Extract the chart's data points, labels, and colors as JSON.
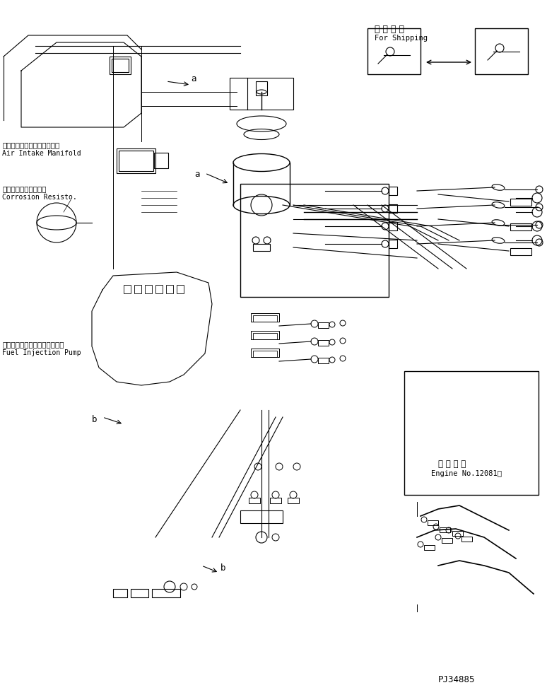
{
  "title": "",
  "background_color": "#ffffff",
  "line_color": "#000000",
  "text_color": "#000000",
  "labels": {
    "air_intake_jp": "エアーインテークマニホルド",
    "air_intake_en": "Air Intake Manifold",
    "corrosion_jp": "コロージョンレジスタ",
    "corrosion_en": "Corrosion Resisto.",
    "fuel_inj_jp": "フェルインジェクションポンプ",
    "fuel_inj_en": "Fuel Injection Pump",
    "shipping_jp": "運 搪 部 品",
    "shipping_en": "For Shipping",
    "engine_jp": "適 用 号 機",
    "engine_en": "Engine No.12081～",
    "part_no": "PJ34885",
    "label_a1": "a",
    "label_a2": "a",
    "label_b1": "b",
    "label_b2": "b"
  },
  "figsize": [
    7.74,
    9.76
  ],
  "dpi": 100
}
